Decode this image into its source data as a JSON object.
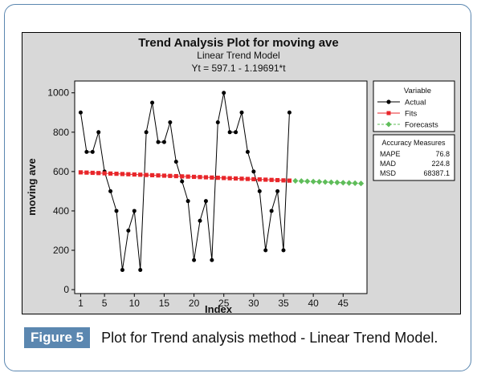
{
  "figure": {
    "label": "Figure 5",
    "caption": "Plot for Trend analysis method - Linear Trend Model."
  },
  "chart_data": {
    "type": "line",
    "title": "Trend Analysis Plot for moving ave",
    "subtitle": "Linear Trend Model",
    "equation": "Yt = 597.1 - 1.19691*t",
    "xlabel": "Index",
    "ylabel": "moving ave",
    "xlim": [
      0,
      49
    ],
    "ylim": [
      -20,
      1060
    ],
    "x_ticks": [
      1,
      5,
      10,
      15,
      20,
      25,
      30,
      35,
      40,
      45
    ],
    "y_ticks": [
      0,
      200,
      400,
      600,
      800,
      1000
    ],
    "grid": false,
    "legend": {
      "title": "Variable",
      "placement": "right",
      "entries": [
        "Actual",
        "Fits",
        "Forecasts"
      ]
    },
    "series": [
      {
        "name": "Actual",
        "color": "#000000",
        "marker": "circle",
        "x": [
          1,
          2,
          3,
          4,
          5,
          6,
          7,
          8,
          9,
          10,
          11,
          12,
          13,
          14,
          15,
          16,
          17,
          18,
          19,
          20,
          21,
          22,
          23,
          24,
          25,
          26,
          27,
          28,
          29,
          30,
          31,
          32,
          33,
          34,
          35,
          36
        ],
        "values": [
          900,
          700,
          700,
          800,
          600,
          500,
          400,
          100,
          300,
          400,
          100,
          800,
          950,
          750,
          750,
          850,
          650,
          550,
          450,
          150,
          350,
          450,
          150,
          850,
          1000,
          800,
          800,
          900,
          700,
          600,
          500,
          200,
          400,
          500,
          200,
          900
        ]
      },
      {
        "name": "Fits",
        "color": "#e8262a",
        "marker": "square",
        "x": [
          1,
          2,
          3,
          4,
          5,
          6,
          7,
          8,
          9,
          10,
          11,
          12,
          13,
          14,
          15,
          16,
          17,
          18,
          19,
          20,
          21,
          22,
          23,
          24,
          25,
          26,
          27,
          28,
          29,
          30,
          31,
          32,
          33,
          34,
          35,
          36
        ],
        "values": [
          595.9,
          594.7,
          593.5,
          592.3,
          591.1,
          589.9,
          588.7,
          587.5,
          586.3,
          585.1,
          583.9,
          582.7,
          581.5,
          580.3,
          579.1,
          577.9,
          576.8,
          575.6,
          574.4,
          573.2,
          572.0,
          570.8,
          569.6,
          568.4,
          567.2,
          566.0,
          564.8,
          563.6,
          562.4,
          561.2,
          560.0,
          558.8,
          557.6,
          556.4,
          555.2,
          554.0
        ]
      },
      {
        "name": "Forecasts",
        "color": "#5fbd5a",
        "marker": "diamond",
        "x": [
          37,
          38,
          39,
          40,
          41,
          42,
          43,
          44,
          45,
          46,
          47,
          48
        ],
        "values": [
          552.8,
          551.6,
          550.4,
          549.2,
          548.0,
          546.8,
          545.6,
          544.4,
          543.2,
          542.0,
          540.8,
          539.6
        ]
      }
    ],
    "accuracy_measures": {
      "title": "Accuracy Measures",
      "rows": [
        {
          "name": "MAPE",
          "value": "76.8"
        },
        {
          "name": "MAD",
          "value": "224.8"
        },
        {
          "name": "MSD",
          "value": "68387.1"
        }
      ]
    }
  }
}
